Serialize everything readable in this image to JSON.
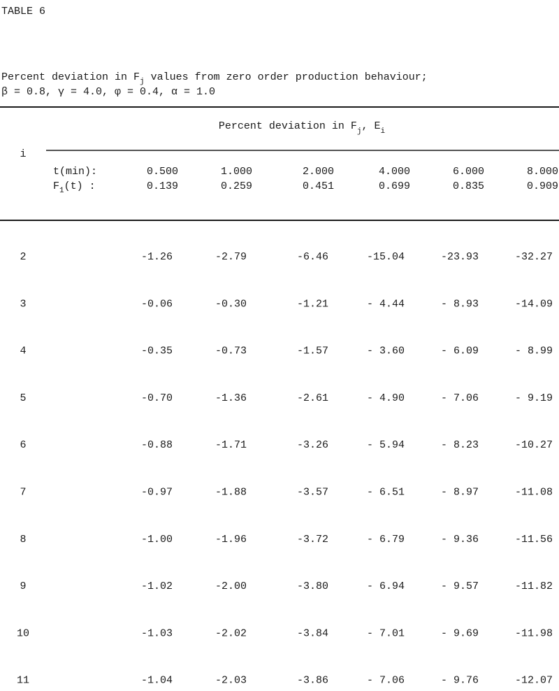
{
  "title": "TABLE 6",
  "caption": {
    "line1": [
      "Percent deviation in F",
      "j",
      " values from zero order production behaviour;"
    ],
    "line2": "β = 0.8, γ = 4.0, φ = 0.4, α = 1.0"
  },
  "table": {
    "row_header": "i",
    "group_header": [
      "Percent deviation in F",
      "j",
      ", E",
      "i"
    ],
    "t_label": "t(min):",
    "f_label": [
      "F",
      "1",
      "(t) :"
    ],
    "t": [
      "0.500",
      "1.000",
      "2.000",
      "4.000",
      "6.000",
      "8.000"
    ],
    "f": [
      "0.139",
      "0.259",
      "0.451",
      "0.699",
      "0.835",
      "0.909"
    ],
    "rows": [
      [
        "2",
        "-1.26",
        "-2.79",
        "-6.46",
        "-15.04",
        "-23.93",
        "-32.27"
      ],
      [
        "3",
        "-0.06",
        "-0.30",
        "-1.21",
        "- 4.44",
        "- 8.93",
        "-14.09"
      ],
      [
        "4",
        "-0.35",
        "-0.73",
        "-1.57",
        "- 3.60",
        "- 6.09",
        "- 8.99"
      ],
      [
        "5",
        "-0.70",
        "-1.36",
        "-2.61",
        "- 4.90",
        "- 7.06",
        "- 9.19"
      ],
      [
        "6",
        "-0.88",
        "-1.71",
        "-3.26",
        "- 5.94",
        "- 8.23",
        "-10.27"
      ],
      [
        "7",
        "-0.97",
        "-1.88",
        "-3.57",
        "- 6.51",
        "- 8.97",
        "-11.08"
      ],
      [
        "8",
        "-1.00",
        "-1.96",
        "-3.72",
        "- 6.79",
        "- 9.36",
        "-11.56"
      ],
      [
        "9",
        "-1.02",
        "-2.00",
        "-3.80",
        "- 6.94",
        "- 9.57",
        "-11.82"
      ],
      [
        "10",
        "-1.03",
        "-2.02",
        "-3.84",
        "- 7.01",
        "- 9.69",
        "-11.98"
      ],
      [
        "11",
        "-1.04",
        "-2.03",
        "-3.86",
        "- 7.06",
        "- 9.76",
        "-12.07"
      ]
    ]
  }
}
